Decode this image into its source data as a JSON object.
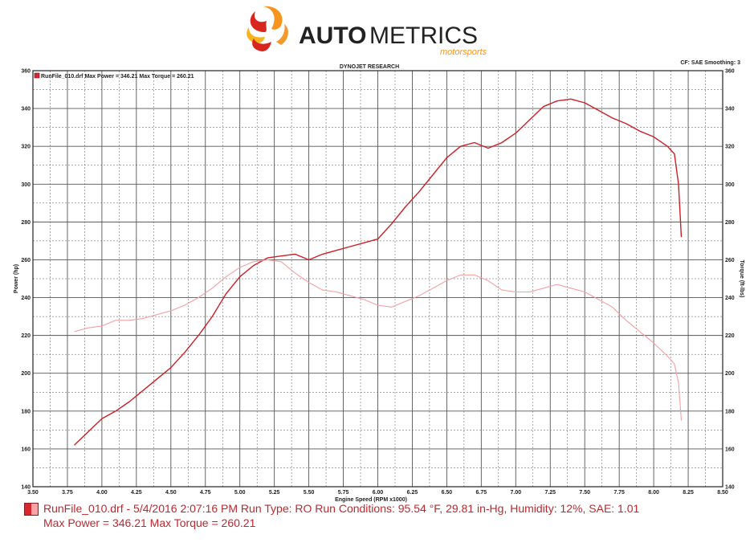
{
  "logo": {
    "brand_bold": "AUTO",
    "brand_light": "METRICS",
    "tagline": "motorsports"
  },
  "header": {
    "title": "DYNOJET RESEARCH",
    "right_info": "CF: SAE  Smoothing: 3",
    "legend_text": "RunFile_010.drf Max Power = 346.21    Max Torque = 260.21"
  },
  "footer": {
    "line1": "RunFile_010.drf - 5/4/2016 2:07:16 PM  Run Type: RO  Run Conditions: 95.54 °F, 29.81 in-Hg,  Humidity:  12%, SAE: 1.01",
    "line2": "Max Power = 346.21  Max Torque = 260.21"
  },
  "colors": {
    "power": "#cc1f26",
    "torque": "#f2a0a4",
    "text_red": "#c0272d",
    "grid": "#555555",
    "logo_orange": "#f7941d",
    "logo_red": "#d7261e"
  },
  "chart_data": {
    "type": "line",
    "title": "DYNOJET RESEARCH",
    "xlabel": "Engine Speed (RPM x1000)",
    "ylabel": "Power (hp)",
    "y2label": "Torque (ft-lbs)",
    "xlim": [
      3.5,
      8.5
    ],
    "ylim": [
      140,
      360
    ],
    "y2lim": [
      140,
      360
    ],
    "xticks": [
      "3.50",
      "3.75",
      "4.00",
      "4.25",
      "4.50",
      "4.75",
      "5.00",
      "5.25",
      "5.50",
      "5.75",
      "6.00",
      "6.25",
      "6.50",
      "6.75",
      "7.00",
      "7.25",
      "7.50",
      "7.75",
      "8.00",
      "8.25",
      "8.50"
    ],
    "yticks": [
      "140",
      "160",
      "180",
      "200",
      "220",
      "240",
      "260",
      "280",
      "300",
      "320",
      "340",
      "360"
    ],
    "grid": true,
    "series": [
      {
        "name": "Power",
        "axis": "left",
        "x": [
          3.8,
          3.9,
          4.0,
          4.1,
          4.2,
          4.3,
          4.4,
          4.5,
          4.6,
          4.7,
          4.8,
          4.9,
          5.0,
          5.1,
          5.2,
          5.3,
          5.4,
          5.5,
          5.6,
          5.7,
          5.8,
          5.9,
          6.0,
          6.1,
          6.2,
          6.3,
          6.4,
          6.5,
          6.6,
          6.7,
          6.8,
          6.9,
          7.0,
          7.1,
          7.2,
          7.3,
          7.4,
          7.5,
          7.6,
          7.7,
          7.8,
          7.9,
          8.0,
          8.1,
          8.15,
          8.18,
          8.2
        ],
        "values": [
          162,
          169,
          176,
          180,
          185,
          191,
          197,
          203,
          211,
          220,
          230,
          242,
          251,
          257,
          261,
          262,
          263,
          260,
          263,
          265,
          267,
          269,
          271,
          279,
          288,
          296,
          305,
          314,
          320,
          322,
          319,
          322,
          327,
          334,
          341,
          344,
          345,
          343,
          339,
          335,
          332,
          328,
          325,
          320,
          316,
          300,
          272
        ]
      },
      {
        "name": "Torque",
        "axis": "right",
        "x": [
          3.8,
          3.9,
          4.0,
          4.1,
          4.2,
          4.3,
          4.4,
          4.5,
          4.6,
          4.7,
          4.8,
          4.9,
          5.0,
          5.1,
          5.2,
          5.3,
          5.4,
          5.5,
          5.6,
          5.7,
          5.8,
          5.9,
          6.0,
          6.1,
          6.2,
          6.3,
          6.4,
          6.5,
          6.6,
          6.7,
          6.8,
          6.9,
          7.0,
          7.1,
          7.2,
          7.3,
          7.4,
          7.5,
          7.6,
          7.7,
          7.8,
          7.9,
          8.0,
          8.1,
          8.15,
          8.18,
          8.2
        ],
        "values": [
          222,
          224,
          225,
          228,
          228,
          229,
          231,
          233,
          236,
          240,
          245,
          251,
          256,
          259,
          260,
          259,
          253,
          248,
          244,
          243,
          241,
          239,
          236,
          235,
          238,
          241,
          245,
          249,
          252,
          252,
          249,
          244,
          243,
          243,
          245,
          247,
          245,
          243,
          239,
          235,
          228,
          222,
          216,
          209,
          205,
          195,
          175
        ]
      }
    ]
  }
}
